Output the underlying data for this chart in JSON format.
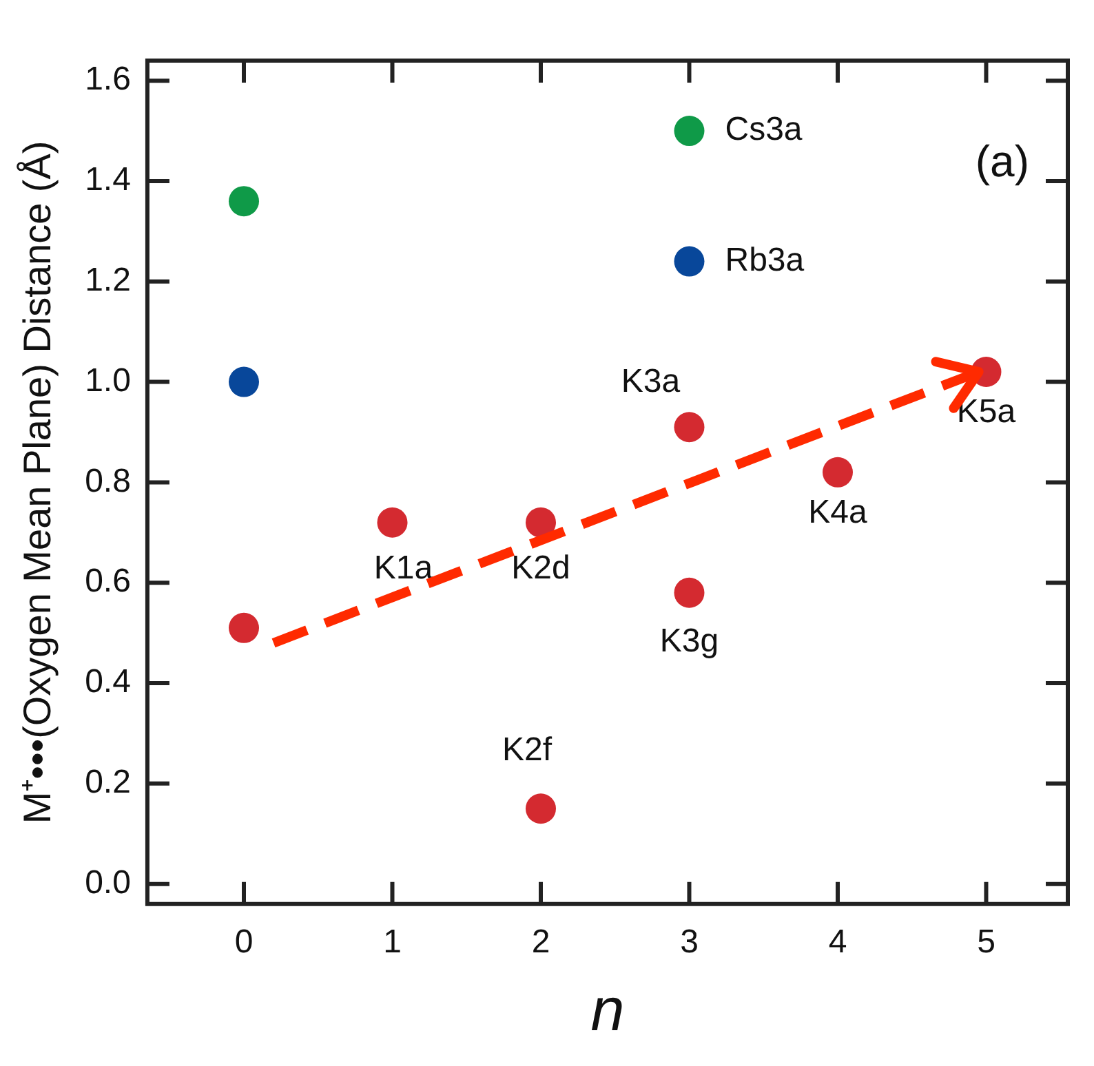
{
  "chart_data": {
    "type": "scatter",
    "xlabel": "n",
    "ylabel": "M⁺•••(Oxygen Mean Plane) Distance (Å)",
    "series": [
      {
        "color": "#0f9a48",
        "x": [
          0,
          3
        ],
        "values": [
          1.36,
          1.5
        ]
      },
      {
        "color": "#08479a",
        "x": [
          0,
          3
        ],
        "values": [
          1.0,
          1.24
        ]
      },
      {
        "color": "#d42a30",
        "x": [
          0,
          1,
          2,
          2,
          3,
          3,
          4,
          5
        ],
        "values": [
          0.51,
          0.72,
          0.72,
          0.15,
          0.91,
          0.58,
          0.82,
          1.02
        ]
      }
    ],
    "annotations": [
      {
        "text": "Cs3a",
        "x": 3,
        "y": 1.5
      },
      {
        "text": "Rb3a",
        "x": 3,
        "y": 1.24
      },
      {
        "text": "K3a",
        "x": 3,
        "y": 0.91
      },
      {
        "text": "K5a",
        "x": 5,
        "y": 1.02
      },
      {
        "text": "K4a",
        "x": 4,
        "y": 0.82
      },
      {
        "text": "K1a",
        "x": 1,
        "y": 0.72
      },
      {
        "text": "K2d",
        "x": 2,
        "y": 0.72
      },
      {
        "text": "K3g",
        "x": 3,
        "y": 0.58
      },
      {
        "text": "K2f",
        "x": 2,
        "y": 0.15
      },
      "(a)"
    ],
    "xlim": [
      -0.65,
      5.55
    ],
    "xticks": [
      0,
      1,
      2,
      3,
      4,
      5
    ],
    "ylim": [
      -0.04,
      1.64
    ],
    "yticks": [
      {
        "value": 0,
        "label": "0.0"
      },
      {
        "value": 0.2,
        "label": "0.2"
      },
      {
        "value": 0.4,
        "label": "0.4"
      },
      {
        "value": 0.6,
        "label": "0.6"
      },
      {
        "value": 0.8,
        "label": "0.8"
      },
      {
        "value": 1.0,
        "label": "1.0"
      },
      {
        "value": 1.2,
        "label": "1.2"
      },
      {
        "value": 1.4,
        "label": "1.4"
      },
      {
        "value": 1.6,
        "label": "1.6"
      }
    ],
    "marker": "circle",
    "grid": false,
    "legend": false
  }
}
